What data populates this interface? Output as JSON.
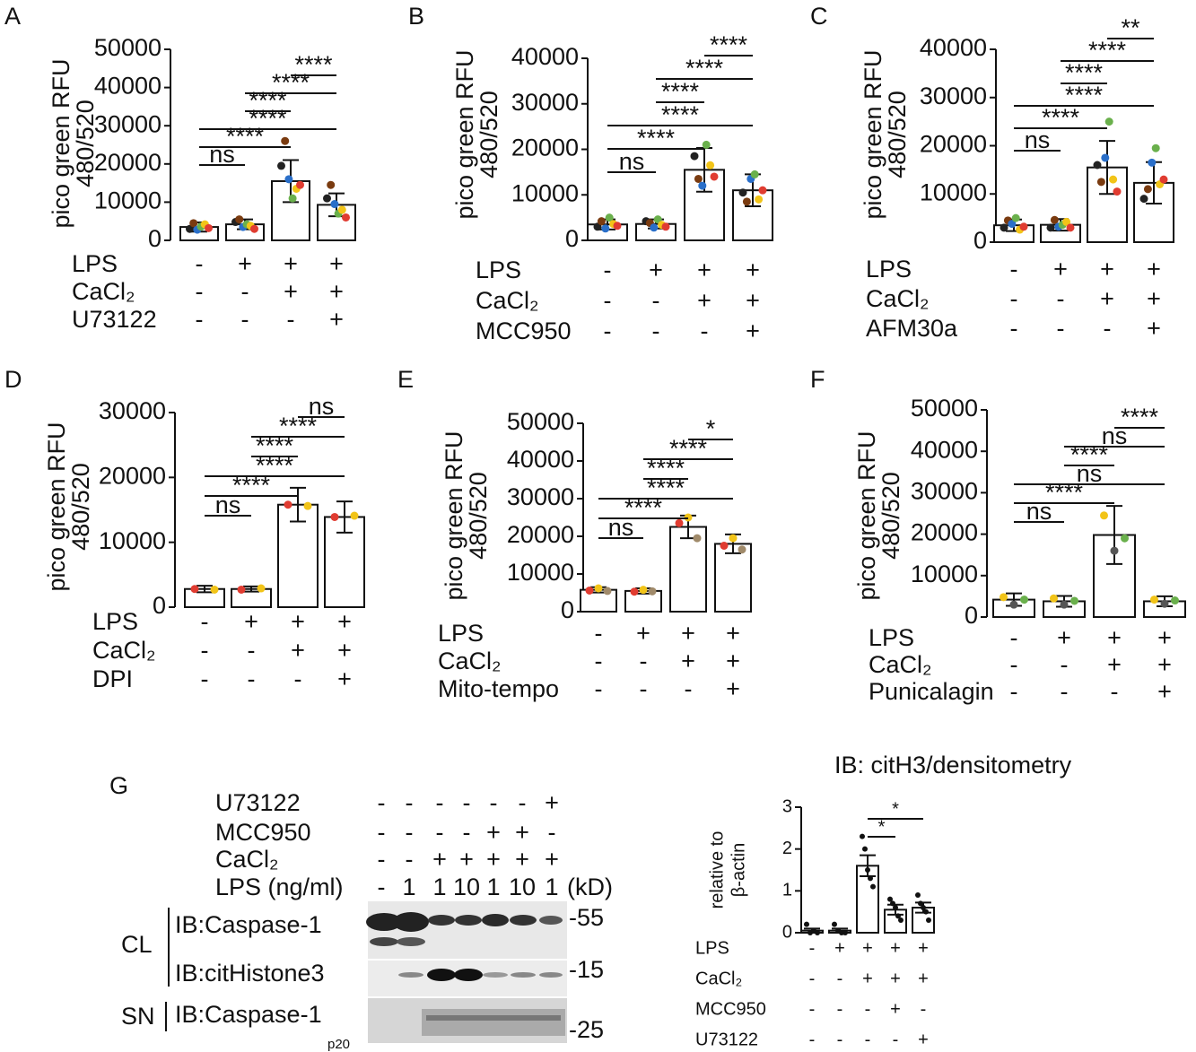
{
  "chart_data": [
    {
      "type": "bar",
      "panel": "A",
      "ylabel": [
        "pico green RFU",
        "480/520"
      ],
      "ylim": [
        0,
        50000
      ],
      "yticks": [
        0,
        10000,
        20000,
        30000,
        40000,
        50000
      ],
      "values": [
        3500,
        4200,
        15500,
        9300
      ],
      "errors": [
        1200,
        1300,
        5500,
        3000
      ],
      "point_colors": [
        "#222222",
        "#7a3b10",
        "#2a6fc9",
        "#6ab04c",
        "#f2c418",
        "#e03c31"
      ],
      "points": [
        [
          3000,
          4500,
          2800,
          3600,
          4200,
          3200
        ],
        [
          4800,
          5500,
          3500,
          4200,
          3800,
          3000
        ],
        [
          19500,
          26000,
          16000,
          11000,
          13500,
          14500
        ],
        [
          11000,
          14500,
          9500,
          7000,
          8000,
          6000
        ]
      ],
      "brackets": [
        {
          "label": "ns",
          "from": 0,
          "to": 1
        },
        {
          "label": "****",
          "from": 0,
          "to": 2
        },
        {
          "label": "****",
          "from": 0,
          "to": 3
        },
        {
          "label": "****",
          "from": 1,
          "to": 2
        },
        {
          "label": "****",
          "from": 1,
          "to": 3
        },
        {
          "label": "****",
          "from": 2,
          "to": 3
        }
      ],
      "conditions": [
        {
          "label": "LPS",
          "marks": [
            "-",
            "+",
            "+",
            "+"
          ]
        },
        {
          "label": "CaCl₂",
          "marks": [
            "-",
            "-",
            "+",
            "+"
          ]
        },
        {
          "label": "U73122",
          "marks": [
            "-",
            "-",
            "-",
            "+"
          ]
        }
      ]
    },
    {
      "type": "bar",
      "panel": "B",
      "ylabel": [
        "pico green RFU",
        "480/520"
      ],
      "ylim": [
        0,
        40000
      ],
      "yticks": [
        0,
        10000,
        20000,
        30000,
        40000
      ],
      "values": [
        3500,
        3600,
        15500,
        11000
      ],
      "errors": [
        1100,
        1000,
        4800,
        3500
      ],
      "point_colors": [
        "#222222",
        "#7a3b10",
        "#2a6fc9",
        "#6ab04c",
        "#f2c418",
        "#e03c31"
      ],
      "points": [
        [
          3000,
          4200,
          2600,
          5000,
          3600,
          3200
        ],
        [
          4200,
          3800,
          2800,
          4600,
          3400,
          3000
        ],
        [
          18500,
          13500,
          12000,
          21000,
          16500,
          14000
        ],
        [
          10500,
          8500,
          13500,
          14500,
          9000,
          11000
        ]
      ],
      "brackets": [
        {
          "label": "ns",
          "from": 0,
          "to": 1
        },
        {
          "label": "****",
          "from": 0,
          "to": 2
        },
        {
          "label": "****",
          "from": 0,
          "to": 3
        },
        {
          "label": "****",
          "from": 1,
          "to": 2
        },
        {
          "label": "****",
          "from": 1,
          "to": 3
        },
        {
          "label": "****",
          "from": 2,
          "to": 3
        }
      ],
      "conditions": [
        {
          "label": "LPS",
          "marks": [
            "-",
            "+",
            "+",
            "+"
          ]
        },
        {
          "label": "CaCl₂",
          "marks": [
            "-",
            "-",
            "+",
            "+"
          ]
        },
        {
          "label": "MCC950",
          "marks": [
            "-",
            "-",
            "-",
            "+"
          ]
        }
      ]
    },
    {
      "type": "bar",
      "panel": "C",
      "ylabel": [
        "pico green RFU",
        "480/520"
      ],
      "ylim": [
        0,
        40000
      ],
      "yticks": [
        0,
        10000,
        20000,
        30000,
        40000
      ],
      "values": [
        3500,
        3600,
        15500,
        12300
      ],
      "errors": [
        1200,
        1200,
        5500,
        4300
      ],
      "point_colors": [
        "#222222",
        "#7a3b10",
        "#2a6fc9",
        "#6ab04c",
        "#f2c418",
        "#e03c31"
      ],
      "points": [
        [
          3000,
          4500,
          3800,
          5000,
          2600,
          3200
        ],
        [
          3000,
          4600,
          3200,
          3600,
          4200,
          3000
        ],
        [
          16000,
          12500,
          17500,
          25000,
          13000,
          10500
        ],
        [
          9000,
          11000,
          16500,
          19500,
          12000,
          13000
        ]
      ],
      "brackets": [
        {
          "label": "ns",
          "from": 0,
          "to": 1
        },
        {
          "label": "****",
          "from": 0,
          "to": 2
        },
        {
          "label": "****",
          "from": 0,
          "to": 3
        },
        {
          "label": "****",
          "from": 1,
          "to": 2
        },
        {
          "label": "****",
          "from": 1,
          "to": 3
        },
        {
          "label": "**",
          "from": 2,
          "to": 3
        }
      ],
      "conditions": [
        {
          "label": "LPS",
          "marks": [
            "-",
            "+",
            "+",
            "+"
          ]
        },
        {
          "label": "CaCl₂",
          "marks": [
            "-",
            "-",
            "+",
            "+"
          ]
        },
        {
          "label": "AFM30a",
          "marks": [
            "-",
            "-",
            "-",
            "+"
          ]
        }
      ]
    },
    {
      "type": "bar",
      "panel": "D",
      "ylabel": [
        "pico green RFU",
        "480/520"
      ],
      "ylim": [
        0,
        30000
      ],
      "yticks": [
        0,
        10000,
        20000,
        30000
      ],
      "values": [
        2800,
        2800,
        15800,
        13900
      ],
      "errors": [
        500,
        400,
        2600,
        2400
      ],
      "point_colors": [
        "#e03c31",
        "#f2c418"
      ],
      "points": [
        [
          2800,
          2700
        ],
        [
          2700,
          2900
        ],
        [
          15800,
          15600
        ],
        [
          13900,
          14100
        ]
      ],
      "brackets": [
        {
          "label": "ns",
          "from": 0,
          "to": 1
        },
        {
          "label": "****",
          "from": 0,
          "to": 2
        },
        {
          "label": "****",
          "from": 0,
          "to": 3
        },
        {
          "label": "****",
          "from": 1,
          "to": 2
        },
        {
          "label": "****",
          "from": 1,
          "to": 3
        },
        {
          "label": "ns",
          "from": 2,
          "to": 3
        }
      ],
      "conditions": [
        {
          "label": "LPS",
          "marks": [
            "-",
            "+",
            "+",
            "+"
          ]
        },
        {
          "label": "CaCl₂",
          "marks": [
            "-",
            "-",
            "+",
            "+"
          ]
        },
        {
          "label": "DPI",
          "marks": [
            "-",
            "-",
            "-",
            "+"
          ]
        }
      ]
    },
    {
      "type": "bar",
      "panel": "E",
      "ylabel": [
        "pico green RFU",
        "480/520"
      ],
      "ylim": [
        0,
        50000
      ],
      "yticks": [
        0,
        10000,
        20000,
        30000,
        40000,
        50000
      ],
      "values": [
        5800,
        5500,
        22500,
        18000
      ],
      "errors": [
        700,
        700,
        3000,
        2500
      ],
      "point_colors": [
        "#e03c31",
        "#f2c418",
        "#a08a6a"
      ],
      "points": [
        [
          5600,
          6200,
          5500
        ],
        [
          5300,
          5800,
          5400
        ],
        [
          23500,
          25000,
          19500
        ],
        [
          17500,
          19500,
          16500
        ]
      ],
      "brackets": [
        {
          "label": "ns",
          "from": 0,
          "to": 1
        },
        {
          "label": "****",
          "from": 0,
          "to": 2
        },
        {
          "label": "****",
          "from": 0,
          "to": 3
        },
        {
          "label": "****",
          "from": 1,
          "to": 2
        },
        {
          "label": "****",
          "from": 1,
          "to": 3
        },
        {
          "label": "*",
          "from": 2,
          "to": 3
        }
      ],
      "conditions": [
        {
          "label": "LPS",
          "marks": [
            "-",
            "+",
            "+",
            "+"
          ]
        },
        {
          "label": "CaCl₂",
          "marks": [
            "-",
            "-",
            "+",
            "+"
          ]
        },
        {
          "label": "Mito-tempo",
          "marks": [
            "-",
            "-",
            "-",
            "+"
          ]
        }
      ]
    },
    {
      "type": "bar",
      "panel": "F",
      "ylabel": [
        "pico green RFU",
        "480/520"
      ],
      "ylim": [
        0,
        50000
      ],
      "yticks": [
        0,
        10000,
        20000,
        30000,
        40000,
        50000
      ],
      "values": [
        4200,
        3800,
        19800,
        3800
      ],
      "errors": [
        1500,
        1300,
        7000,
        1200
      ],
      "point_colors": [
        "#f2c418",
        "#555555",
        "#6ab04c"
      ],
      "points": [
        [
          4800,
          3000,
          4200
        ],
        [
          4500,
          3000,
          3900
        ],
        [
          24500,
          16000,
          19000
        ],
        [
          4200,
          3200,
          4000
        ]
      ],
      "brackets": [
        {
          "label": "ns",
          "from": 0,
          "to": 1
        },
        {
          "label": "****",
          "from": 0,
          "to": 2
        },
        {
          "label": "ns",
          "from": 0,
          "to": 3
        },
        {
          "label": "****",
          "from": 1,
          "to": 2
        },
        {
          "label": "ns",
          "from": 1,
          "to": 3
        },
        {
          "label": "****",
          "from": 2,
          "to": 3
        }
      ],
      "conditions": [
        {
          "label": "LPS",
          "marks": [
            "-",
            "+",
            "+",
            "+"
          ]
        },
        {
          "label": "CaCl₂",
          "marks": [
            "-",
            "-",
            "+",
            "+"
          ]
        },
        {
          "label": "Punicalagin",
          "marks": [
            "-",
            "-",
            "-",
            "+"
          ]
        }
      ]
    },
    {
      "type": "bar",
      "title": "IB: citH3/densitometry",
      "ylabel": [
        "relative to",
        "β-actin"
      ],
      "ylim": [
        0,
        3
      ],
      "yticks": [
        0,
        1,
        2,
        3
      ],
      "values": [
        0.05,
        0.05,
        1.6,
        0.55,
        0.6
      ],
      "errors": [
        0.05,
        0.05,
        0.25,
        0.12,
        0.12
      ],
      "point_colors": [
        "#111111"
      ],
      "points": [
        [
          0.2,
          0.0,
          0.05,
          0.0
        ],
        [
          0.2,
          0.05,
          0.0,
          0.0
        ],
        [
          2.3,
          2.0,
          1.5,
          1.3,
          1.1
        ],
        [
          0.8,
          0.7,
          0.6,
          0.4,
          0.3
        ],
        [
          0.9,
          0.7,
          0.6,
          0.5,
          0.3
        ]
      ],
      "brackets": [
        {
          "label": "*",
          "from": 2,
          "to": 3
        },
        {
          "label": "*",
          "from": 2,
          "to": 4
        }
      ],
      "conditions": [
        {
          "label": "LPS",
          "marks": [
            "-",
            "+",
            "+",
            "+",
            "+"
          ]
        },
        {
          "label": "CaCl₂",
          "marks": [
            "-",
            "-",
            "+",
            "+",
            "+"
          ]
        },
        {
          "label": "MCC950",
          "marks": [
            "-",
            "-",
            "-",
            "+",
            "-"
          ]
        },
        {
          "label": "U73122",
          "marks": [
            "-",
            "-",
            "-",
            "-",
            "+"
          ]
        }
      ]
    }
  ],
  "blot": {
    "panel": "G",
    "rows": [
      {
        "label": "U73122",
        "marks": [
          "-",
          "-",
          "-",
          "-",
          "-",
          "-",
          "+"
        ]
      },
      {
        "label": "MCC950",
        "marks": [
          "-",
          "-",
          "-",
          "-",
          "+",
          "+",
          "-"
        ]
      },
      {
        "label": "CaCl₂",
        "marks": [
          "-",
          "-",
          "+",
          "+",
          "+",
          "+",
          "+"
        ]
      },
      {
        "label": "LPS (ng/ml)",
        "marks": [
          "-",
          "1",
          "1",
          "10",
          "1",
          "10",
          "1"
        ]
      }
    ],
    "unit": "(kD)",
    "groups": [
      {
        "label": "CL",
        "blots": [
          "IB:Caspase-1",
          "IB:citHistone3"
        ]
      },
      {
        "label": "SN",
        "blots": [
          "IB:Caspase-1"
        ]
      }
    ],
    "sublabel": "p20",
    "markers": [
      "-55",
      "-15",
      "-25"
    ]
  }
}
